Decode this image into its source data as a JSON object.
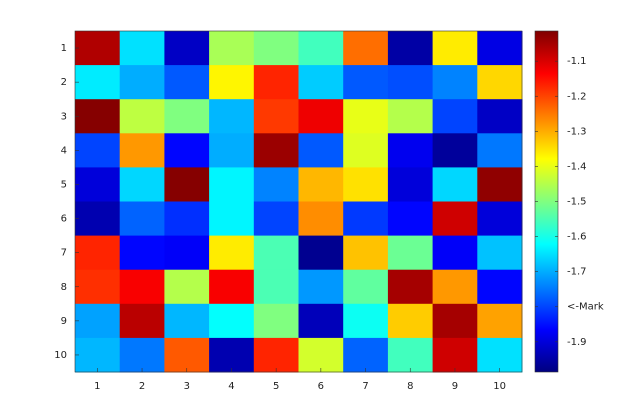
{
  "chart_data": {
    "type": "heatmap",
    "colormap": "jet",
    "x": [
      1,
      2,
      3,
      4,
      5,
      6,
      7,
      8,
      9,
      10
    ],
    "y": [
      1,
      2,
      3,
      4,
      5,
      6,
      7,
      8,
      9,
      10
    ],
    "xlim": [
      0.5,
      10.5
    ],
    "ylim": [
      0.5,
      10.5
    ],
    "values": [
      [
        -1.06,
        -1.65,
        -1.92,
        -1.46,
        -1.5,
        -1.56,
        -1.24,
        -1.95,
        -1.36,
        -1.89
      ],
      [
        -1.64,
        -1.7,
        -1.78,
        -1.37,
        -1.17,
        -1.67,
        -1.78,
        -1.79,
        -1.74,
        -1.34
      ],
      [
        -1.02,
        -1.44,
        -1.5,
        -1.69,
        -1.19,
        -1.12,
        -1.4,
        -1.45,
        -1.8,
        -1.92
      ],
      [
        -1.8,
        -1.28,
        -1.86,
        -1.7,
        -1.04,
        -1.78,
        -1.41,
        -1.88,
        -1.96,
        -1.75
      ],
      [
        -1.9,
        -1.66,
        -1.02,
        -1.63,
        -1.74,
        -1.31,
        -1.35,
        -1.9,
        -1.66,
        -1.03
      ],
      [
        -1.94,
        -1.77,
        -1.82,
        -1.63,
        -1.8,
        -1.27,
        -1.81,
        -1.86,
        -1.09,
        -1.9
      ],
      [
        -1.17,
        -1.86,
        -1.87,
        -1.36,
        -1.55,
        -1.97,
        -1.32,
        -1.52,
        -1.87,
        -1.68
      ],
      [
        -1.18,
        -1.13,
        -1.45,
        -1.13,
        -1.55,
        -1.72,
        -1.53,
        -1.05,
        -1.28,
        -1.86
      ],
      [
        -1.71,
        -1.07,
        -1.69,
        -1.62,
        -1.5,
        -1.93,
        -1.61,
        -1.33,
        -1.05,
        -1.29
      ],
      [
        -1.69,
        -1.75,
        -1.22,
        -1.94,
        -1.17,
        -1.42,
        -1.77,
        -1.56,
        -1.09,
        -1.65
      ]
    ],
    "clim": [
      -1.986,
      -1.014
    ],
    "cticks": [
      -1.1,
      -1.2,
      -1.3,
      -1.4,
      -1.5,
      -1.6,
      -1.7,
      {
        "value": -1.8,
        "label": "<-Mark"
      },
      -1.9
    ]
  }
}
